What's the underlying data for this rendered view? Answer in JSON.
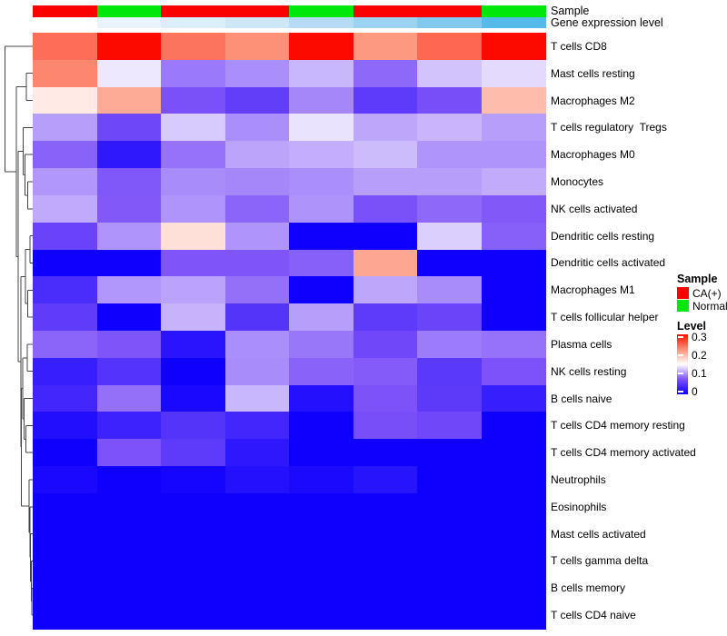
{
  "header": {
    "sample_label": "Sample",
    "gene_expression_label": "Gene expression level"
  },
  "annotations": {
    "sample_groups": [
      "CA(+)",
      "Normal",
      "CA(+)",
      "CA(+)",
      "Normal",
      "CA(+)",
      "CA(+)",
      "Normal"
    ],
    "sample_colors": {
      "CA(+)": "#fa0200",
      "Normal": "#00e80b"
    },
    "gene_expression_colors": [
      "#ffffff",
      "#e9f3fb",
      "#dceef9",
      "#cde7f7",
      "#b5dcf4",
      "#9cd3f1",
      "#82c9ee",
      "#55b9ea"
    ]
  },
  "chart_data": {
    "type": "heatmap",
    "rows": [
      "T cells CD8",
      "Mast cells resting",
      "Macrophages M2",
      "T cells regulatory  Tregs",
      "Macrophages M0",
      "Monocytes",
      "NK cells activated",
      "Dendritic cells resting",
      "Dendritic cells activated",
      "Macrophages M1",
      "T cells follicular helper",
      "Plasma cells",
      "NK cells resting",
      "B cells naive",
      "T cells CD4 memory resting",
      "T cells CD4 memory activated",
      "Neutrophils",
      "Eosinophils",
      "Mast cells activated",
      "T cells gamma delta",
      "B cells memory",
      "T cells CD4 naive"
    ],
    "column_groups": [
      "CA(+)",
      "Normal",
      "CA(+)",
      "CA(+)",
      "Normal",
      "CA(+)",
      "CA(+)",
      "Normal"
    ],
    "values": [
      [
        0.245,
        0.3,
        0.241,
        0.225,
        0.3,
        0.22,
        0.248,
        0.3
      ],
      [
        0.231,
        0.14,
        0.092,
        0.101,
        0.119,
        0.085,
        0.124,
        0.134
      ],
      [
        0.164,
        0.208,
        0.073,
        0.057,
        0.098,
        0.054,
        0.071,
        0.196
      ],
      [
        0.108,
        0.065,
        0.127,
        0.101,
        0.138,
        0.112,
        0.118,
        0.108
      ],
      [
        0.082,
        0.022,
        0.089,
        0.111,
        0.115,
        0.121,
        0.104,
        0.104
      ],
      [
        0.105,
        0.077,
        0.1,
        0.098,
        0.101,
        0.108,
        0.108,
        0.114
      ],
      [
        0.113,
        0.078,
        0.104,
        0.083,
        0.103,
        0.073,
        0.085,
        0.078
      ],
      [
        0.061,
        0.104,
        0.171,
        0.104,
        0.0,
        0.0,
        0.129,
        0.081
      ],
      [
        0.0,
        0.0,
        0.076,
        0.076,
        0.081,
        0.211,
        0.0,
        0.0
      ],
      [
        0.041,
        0.105,
        0.11,
        0.088,
        0.0,
        0.112,
        0.1,
        0.0
      ],
      [
        0.055,
        0.0,
        0.117,
        0.048,
        0.108,
        0.054,
        0.062,
        0.0
      ],
      [
        0.083,
        0.076,
        0.018,
        0.101,
        0.091,
        0.066,
        0.093,
        0.089
      ],
      [
        0.027,
        0.047,
        0.0,
        0.1,
        0.082,
        0.079,
        0.052,
        0.075
      ],
      [
        0.035,
        0.088,
        0.007,
        0.119,
        0.015,
        0.075,
        0.053,
        0.027
      ],
      [
        0.013,
        0.031,
        0.048,
        0.035,
        0.0,
        0.071,
        0.066,
        0.0
      ],
      [
        0.0,
        0.075,
        0.054,
        0.021,
        0.0,
        0.0,
        0.0,
        0.0
      ],
      [
        0.007,
        0.0,
        0.005,
        0.015,
        0.008,
        0.017,
        0.0,
        0.0
      ],
      [
        0.0,
        0.0,
        0.0,
        0.0,
        0.0,
        0.0,
        0.0,
        0.0
      ],
      [
        0.0,
        0.0,
        0.0,
        0.0,
        0.0,
        0.0,
        0.0,
        0.0
      ],
      [
        0.0,
        0.0,
        0.0,
        0.0,
        0.0,
        0.0,
        0.0,
        0.0
      ],
      [
        0.0,
        0.0,
        0.0,
        0.0,
        0.0,
        0.0,
        0.0,
        0.0
      ],
      [
        0.0,
        0.0,
        0.0,
        0.0,
        0.0,
        0.0,
        0.0,
        0.0
      ]
    ],
    "color_scale": {
      "min": 0,
      "max": 0.3,
      "stops": [
        {
          "v": 0.0,
          "c": "#0f00fe"
        },
        {
          "v": 0.075,
          "c": "#7d52f8"
        },
        {
          "v": 0.15,
          "c": "#ffffff"
        },
        {
          "v": 0.225,
          "c": "#fd9178"
        },
        {
          "v": 0.3,
          "c": "#fc0a00"
        }
      ]
    }
  },
  "legend": {
    "sample_title": "Sample",
    "sample_items": [
      {
        "label": "CA(+)",
        "color": "#fa0200"
      },
      {
        "label": "Normal",
        "color": "#00e80b"
      }
    ],
    "level_title": "Level",
    "level_ticks": [
      {
        "label": "0.3",
        "value": 0.3
      },
      {
        "label": "0.2",
        "value": 0.2
      },
      {
        "label": "0.1",
        "value": 0.1
      },
      {
        "label": "0",
        "value": 0.0
      }
    ]
  },
  "dendrogram": {
    "line_color": "#444444",
    "merges": [
      {
        "x": 30.5,
        "children": [
          "L6",
          "L7"
        ]
      },
      {
        "x": 27.5,
        "children": [
          "L5",
          "M0"
        ]
      },
      {
        "x": 25.5,
        "children": [
          "L4",
          "M1"
        ]
      },
      {
        "x": 29.0,
        "children": [
          "L2",
          "L3"
        ]
      },
      {
        "x": 33.0,
        "children": [
          "L8",
          "L9"
        ]
      },
      {
        "x": 30.5,
        "children": [
          "L10",
          "L11"
        ]
      },
      {
        "x": 28.0,
        "children": [
          "M4",
          "M5"
        ]
      },
      {
        "x": 30.0,
        "children": [
          "L12",
          "L13"
        ]
      },
      {
        "x": 28.5,
        "children": [
          "L15",
          "L16"
        ]
      },
      {
        "x": 26.5,
        "children": [
          "L14",
          "M8"
        ]
      },
      {
        "x": 24.8,
        "children": [
          "M7",
          "M9"
        ]
      },
      {
        "x": 35.2,
        "children": [
          "L21",
          "L22"
        ]
      },
      {
        "x": 34.4,
        "children": [
          "L20",
          "M11"
        ]
      },
      {
        "x": 33.6,
        "children": [
          "L19",
          "M12"
        ]
      },
      {
        "x": 32.8,
        "children": [
          "L18",
          "M13"
        ]
      },
      {
        "x": 31.8,
        "children": [
          "L17",
          "M14"
        ]
      },
      {
        "x": 23.5,
        "children": [
          "M10",
          "M15"
        ]
      },
      {
        "x": 22.8,
        "children": [
          "M6",
          "M16"
        ]
      },
      {
        "x": 20.0,
        "children": [
          "M2",
          "M17"
        ]
      },
      {
        "x": 18.0,
        "children": [
          "M3",
          "M18"
        ]
      },
      {
        "x": 5.7,
        "children": [
          "L1",
          "M19"
        ]
      }
    ]
  }
}
